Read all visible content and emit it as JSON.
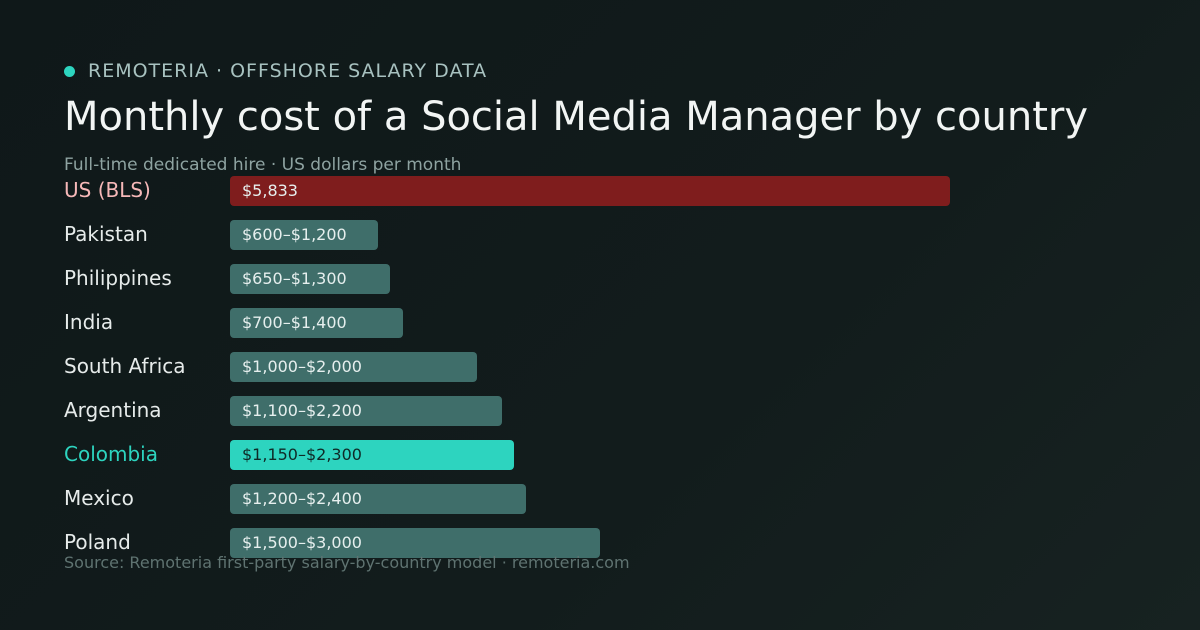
{
  "header": {
    "brand": "REMOTERIA · OFFSHORE SALARY DATA",
    "title": "Monthly cost of a Social Media Manager by country",
    "subtitle": "Full-time dedicated hire · US dollars per month"
  },
  "footer": {
    "source": "Source: Remoteria first-party salary-by-country model · remoteria.com"
  },
  "colors": {
    "brand_dot": "#2dd4bf",
    "default_bar": "#3f6e6a",
    "benchmark_bar": "#7f1d1d",
    "highlight_bar": "#2dd4bf",
    "benchmark_label": "#f6b8b8",
    "highlight_label": "#2dd4bf"
  },
  "chart_data": {
    "type": "bar",
    "orientation": "horizontal",
    "title": "Monthly cost of a Social Media Manager by country",
    "subtitle": "Full-time dedicated hire · US dollars per month",
    "unit": "USD per month",
    "xlim": [
      0,
      5833
    ],
    "grid": false,
    "categories": [
      "US (BLS)",
      "Pakistan",
      "Philippines",
      "India",
      "South Africa",
      "Argentina",
      "Colombia",
      "Mexico",
      "Poland"
    ],
    "ranges": [
      [
        5833,
        5833
      ],
      [
        600,
        1200
      ],
      [
        650,
        1300
      ],
      [
        700,
        1400
      ],
      [
        1000,
        2000
      ],
      [
        1100,
        2200
      ],
      [
        1150,
        2300
      ],
      [
        1200,
        2400
      ],
      [
        1500,
        3000
      ]
    ],
    "value_labels": [
      "$5,833",
      "$600–$1,200",
      "$650–$1,300",
      "$700–$1,400",
      "$1,000–$2,000",
      "$1,100–$2,200",
      "$1,150–$2,300",
      "$1,200–$2,400",
      "$1,500–$3,000"
    ],
    "styles": [
      "benchmark",
      "default",
      "default",
      "default",
      "default",
      "default",
      "highlight",
      "default",
      "default"
    ]
  }
}
